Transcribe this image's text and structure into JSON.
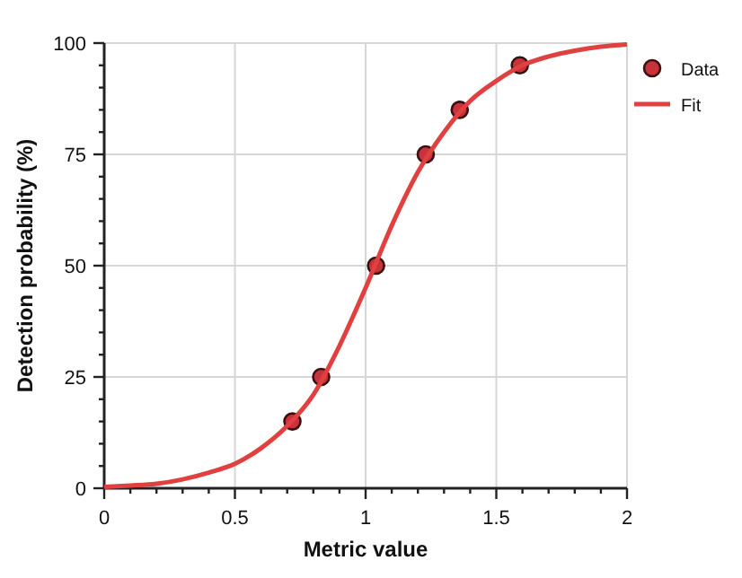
{
  "chart_data": {
    "type": "scatter",
    "xlabel": "Metric value",
    "ylabel": "Detection probability (%)",
    "xlim": [
      0,
      2
    ],
    "ylim": [
      0,
      100
    ],
    "xticks": [
      0,
      {
        "value": 0.1,
        "label": null
      },
      {
        "value": 0.2,
        "label": null
      },
      {
        "value": 0.3,
        "label": null
      },
      {
        "value": 0.4,
        "label": null
      },
      0.5,
      {
        "value": 0.6,
        "label": null
      },
      {
        "value": 0.7,
        "label": null
      },
      {
        "value": 0.8,
        "label": null
      },
      {
        "value": 0.9,
        "label": null
      },
      1,
      {
        "value": 1.1,
        "label": null
      },
      {
        "value": 1.2,
        "label": null
      },
      {
        "value": 1.3,
        "label": null
      },
      {
        "value": 1.4,
        "label": null
      },
      1.5,
      {
        "value": 1.6,
        "label": null
      },
      {
        "value": 1.7,
        "label": null
      },
      {
        "value": 1.8,
        "label": null
      },
      {
        "value": 1.9,
        "label": null
      },
      2
    ],
    "yticks": [
      0,
      {
        "value": 5,
        "label": null
      },
      {
        "value": 10,
        "label": null
      },
      {
        "value": 15,
        "label": null
      },
      {
        "value": 20,
        "label": null
      },
      25,
      {
        "value": 30,
        "label": null
      },
      {
        "value": 35,
        "label": null
      },
      {
        "value": 40,
        "label": null
      },
      {
        "value": 45,
        "label": null
      },
      50,
      {
        "value": 55,
        "label": null
      },
      {
        "value": 60,
        "label": null
      },
      {
        "value": 65,
        "label": null
      },
      {
        "value": 70,
        "label": null
      },
      75,
      {
        "value": 80,
        "label": null
      },
      {
        "value": 85,
        "label": null
      },
      {
        "value": 90,
        "label": null
      },
      {
        "value": 95,
        "label": null
      },
      100
    ],
    "grid": true,
    "legend": "top right",
    "series": [
      {
        "name": "Data",
        "marker": "circle",
        "color": "#c8323a",
        "x": [
          0.72,
          0.83,
          1.04,
          1.23,
          1.36,
          1.59
        ],
        "values": [
          15,
          25,
          50,
          75,
          85,
          95
        ]
      },
      {
        "name": "Fit",
        "type": "line",
        "marker": "none",
        "line_style": "solid",
        "color": "#e0403f",
        "x": [
          0,
          0.1,
          0.2,
          0.3,
          0.4,
          0.5,
          0.6,
          0.7,
          0.8,
          0.9,
          1.0,
          1.1,
          1.2,
          1.3,
          1.4,
          1.5,
          1.6,
          1.7,
          1.8,
          1.9,
          2.0
        ],
        "values": [
          0.3,
          0.6,
          1,
          2,
          3.5,
          5.5,
          9,
          14,
          21,
          32,
          45,
          59,
          71,
          80,
          87,
          91.5,
          95,
          97,
          98.3,
          99.2,
          99.7
        ]
      }
    ]
  }
}
